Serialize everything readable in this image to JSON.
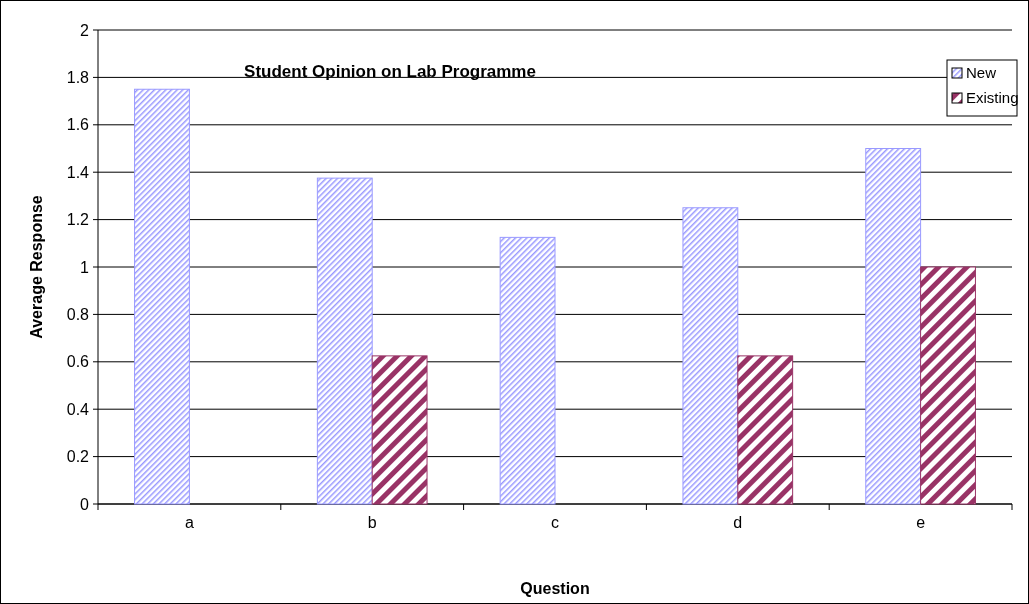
{
  "chart_data": {
    "type": "bar",
    "title": "Student Opinion on Lab Programme",
    "xlabel": "Question",
    "ylabel": "Average Response",
    "categories": [
      "a",
      "b",
      "c",
      "d",
      "e"
    ],
    "series": [
      {
        "name": "New",
        "color": "#9999ff",
        "values": [
          1.75,
          1.375,
          1.125,
          1.25,
          1.5
        ]
      },
      {
        "name": "Existing",
        "color": "#993366",
        "values": [
          null,
          0.625,
          null,
          0.625,
          1.0
        ]
      }
    ],
    "ylim": [
      0,
      2
    ],
    "yticks": [
      0,
      0.2,
      0.4,
      0.6,
      0.8,
      1,
      1.2,
      1.4,
      1.6,
      1.8,
      2
    ],
    "grid": "y",
    "legend": "top right"
  }
}
